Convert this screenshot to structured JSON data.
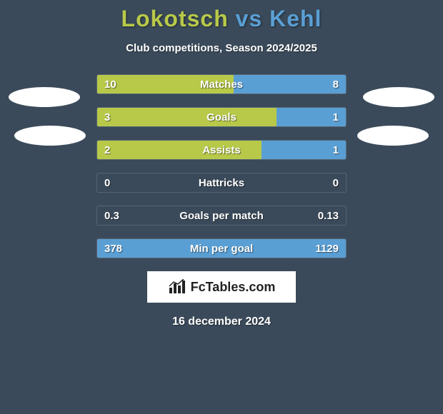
{
  "background_color": "#3a4a5a",
  "colors": {
    "player1": "#b8c94a",
    "player2": "#5a9fd4",
    "text": "#ffffff"
  },
  "title": {
    "player1": "Lokotsch",
    "vs": "vs",
    "player2": "Kehl",
    "fontsize": 32
  },
  "subtitle": "Club competitions, Season 2024/2025",
  "bars": [
    {
      "label": "Matches",
      "left": "10",
      "right": "8",
      "left_pct": 55,
      "right_pct": 45
    },
    {
      "label": "Goals",
      "left": "3",
      "right": "1",
      "left_pct": 72,
      "right_pct": 28
    },
    {
      "label": "Assists",
      "left": "2",
      "right": "1",
      "left_pct": 66,
      "right_pct": 34
    },
    {
      "label": "Hattricks",
      "left": "0",
      "right": "0",
      "left_pct": 0,
      "right_pct": 0
    },
    {
      "label": "Goals per match",
      "left": "0.3",
      "right": "0.13",
      "left_pct": 0,
      "right_pct": 0
    },
    {
      "label": "Min per goal",
      "left": "378",
      "right": "1129",
      "left_pct": 0,
      "right_pct": 100
    }
  ],
  "branding": "FcTables.com",
  "date": "16 december 2024"
}
